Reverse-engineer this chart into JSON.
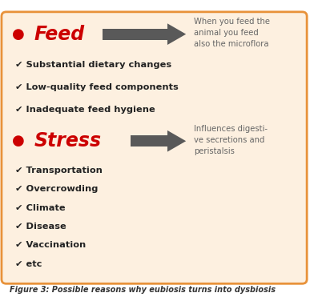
{
  "bg_color": "#fdf0e0",
  "border_color": "#e8923a",
  "fig_bg": "#ffffff",
  "title_color": "#cc0000",
  "bullet_color": "#cc0000",
  "arrow_color": "#595959",
  "text_color_dark": "#666666",
  "text_color_black": "#222222",
  "caption_color": "#333333",
  "feed_label": "Feed",
  "feed_arrow_text": "When you feed the\nanimal you feed\nalso the microflora",
  "feed_items": [
    "✔ Substantial dietary changes",
    "✔ Low-quality feed components",
    "✔ Inadequate feed hygiene"
  ],
  "stress_label": "Stress",
  "stress_arrow_text": "Influences digesti-\nve secretions and\nperistalsis",
  "stress_items": [
    "✔ Transportation",
    "✔ Overcrowding",
    "✔ Climate",
    "✔ Disease",
    "✔ Vaccination",
    "✔ etc"
  ],
  "caption": "Figure 3: Possible reasons why eubiosis turns into dysbiosis"
}
